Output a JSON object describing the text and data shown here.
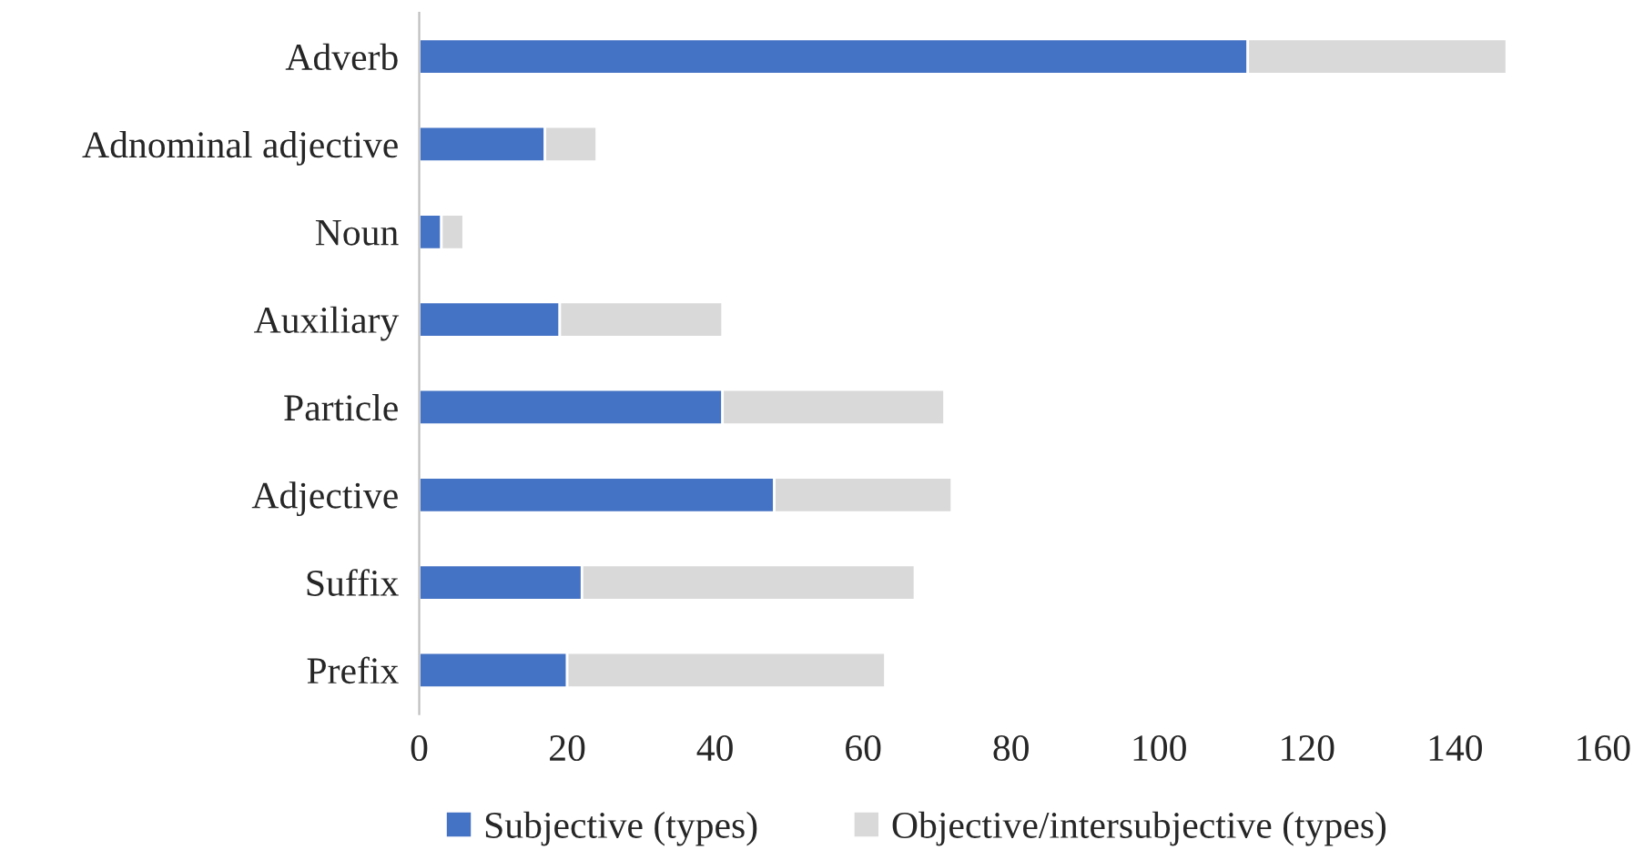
{
  "chart_data": {
    "type": "bar",
    "orientation": "horizontal",
    "stacked": true,
    "categories": [
      "Adverb",
      "Adnominal adjective",
      "Noun",
      "Auxiliary",
      "Particle",
      "Adjective",
      "Suffix",
      "Prefix"
    ],
    "series": [
      {
        "name": "Subjective (types)",
        "color": "#4472c4",
        "values": [
          112,
          17,
          3,
          19,
          41,
          48,
          22,
          20
        ]
      },
      {
        "name": "Objective/intersubjective (types)",
        "color": "#d9d9d9",
        "values": [
          35,
          7,
          3,
          22,
          30,
          24,
          45,
          43
        ]
      }
    ],
    "xlim": [
      0,
      160
    ],
    "xticks": [
      0,
      20,
      40,
      60,
      80,
      100,
      120,
      140,
      160
    ],
    "grid": false,
    "legend": "bottom"
  }
}
